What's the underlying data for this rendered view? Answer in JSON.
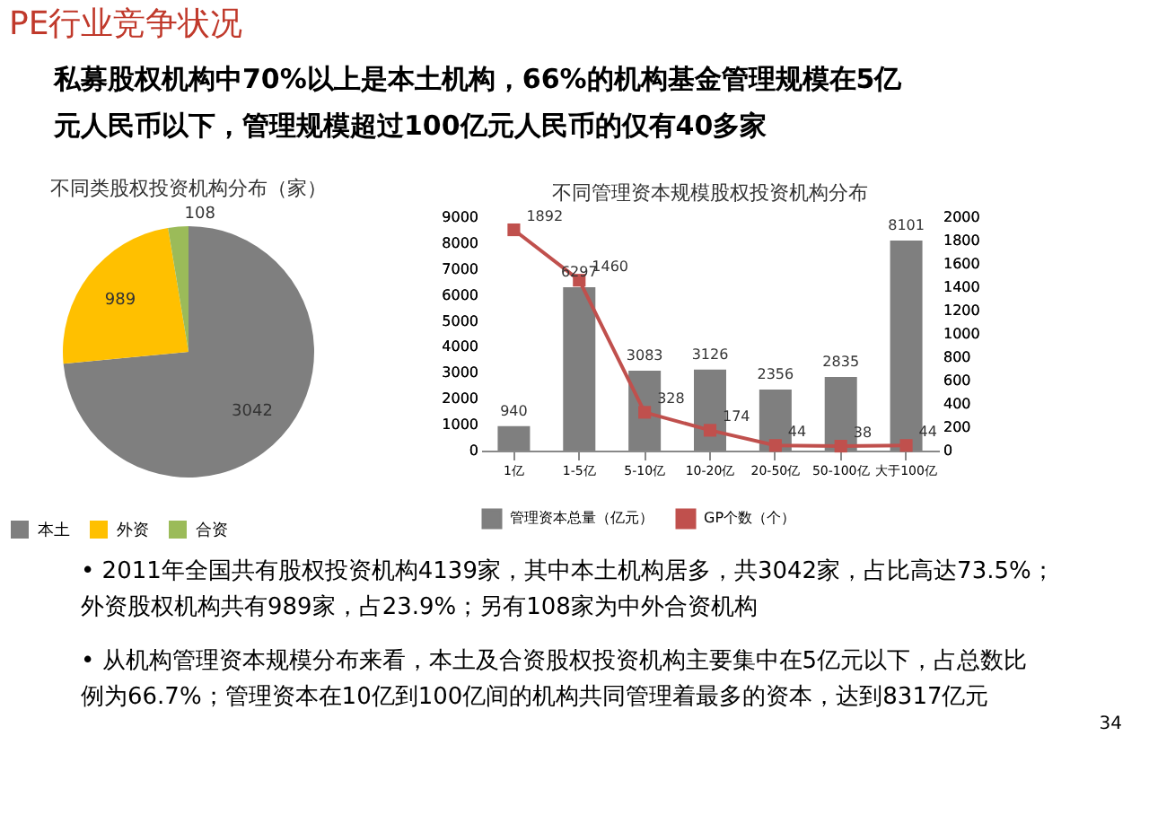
{
  "chart_data": [
    {
      "type": "other",
      "title": "PE行业竞争状况",
      "annotations": [
        "私募股权机构中70%以上是本土机构，66%的机构基金管理规模在5亿",
        "元人民币以下，管理规模超过100亿元人民币的仅有40多家"
      ]
    },
    {
      "type": "pie",
      "title": "不同类股权投资机构分布（家）",
      "categories": [
        "本土",
        "外资",
        "合资"
      ],
      "values": [
        3042,
        989,
        108
      ],
      "colors": [
        "#7f7f7f",
        "#ffc000",
        "#9bbb59"
      ],
      "data_labels": true,
      "legend": "bottom"
    },
    {
      "type": "bar",
      "title": "不同管理资本规模股权投资机构分布",
      "categories": [
        "1亿",
        "1-5亿",
        "5-10亿",
        "10-20亿",
        "20-50亿",
        "50-100亿",
        "大于100亿"
      ],
      "series": [
        {
          "name": "管理资本总量（亿元）",
          "color": "#7f7f7f",
          "values": [
            940,
            6297,
            3083,
            3126,
            2356,
            2835,
            8101
          ]
        },
        {
          "name": "GP个数（个）",
          "color": "#c0504d",
          "type": "line",
          "axis": "y2",
          "marker": "square",
          "values": [
            1892,
            1460,
            328,
            174,
            44,
            38,
            44
          ]
        }
      ],
      "ylim": [
        0,
        9000
      ],
      "yticks": [
        0,
        1000,
        2000,
        3000,
        4000,
        5000,
        6000,
        7000,
        8000,
        9000
      ],
      "y2lim": [
        0,
        2000
      ],
      "y2ticks": [
        0,
        200,
        400,
        600,
        800,
        1000,
        1200,
        1400,
        1600,
        1800,
        2000
      ],
      "data_labels": true,
      "legend": "bottom",
      "grid": false
    },
    {
      "type": "other",
      "annotations": [
        "•  2011年全国共有股权投资机构4139家，其中本土机构居多，共3042家，占比高达73.5%；",
        "    外资股权机构共有989家，占23.9%；另有108家为中外合资机构",
        "•  从机构管理资本规模分布来看，本土及合资股权投资机构主要集中在5亿元以下，占总数比",
        "    例为66.7%；管理资本在10亿到100亿间的机构共同管理着最多的资本，达到8317亿元",
        "34"
      ]
    }
  ]
}
